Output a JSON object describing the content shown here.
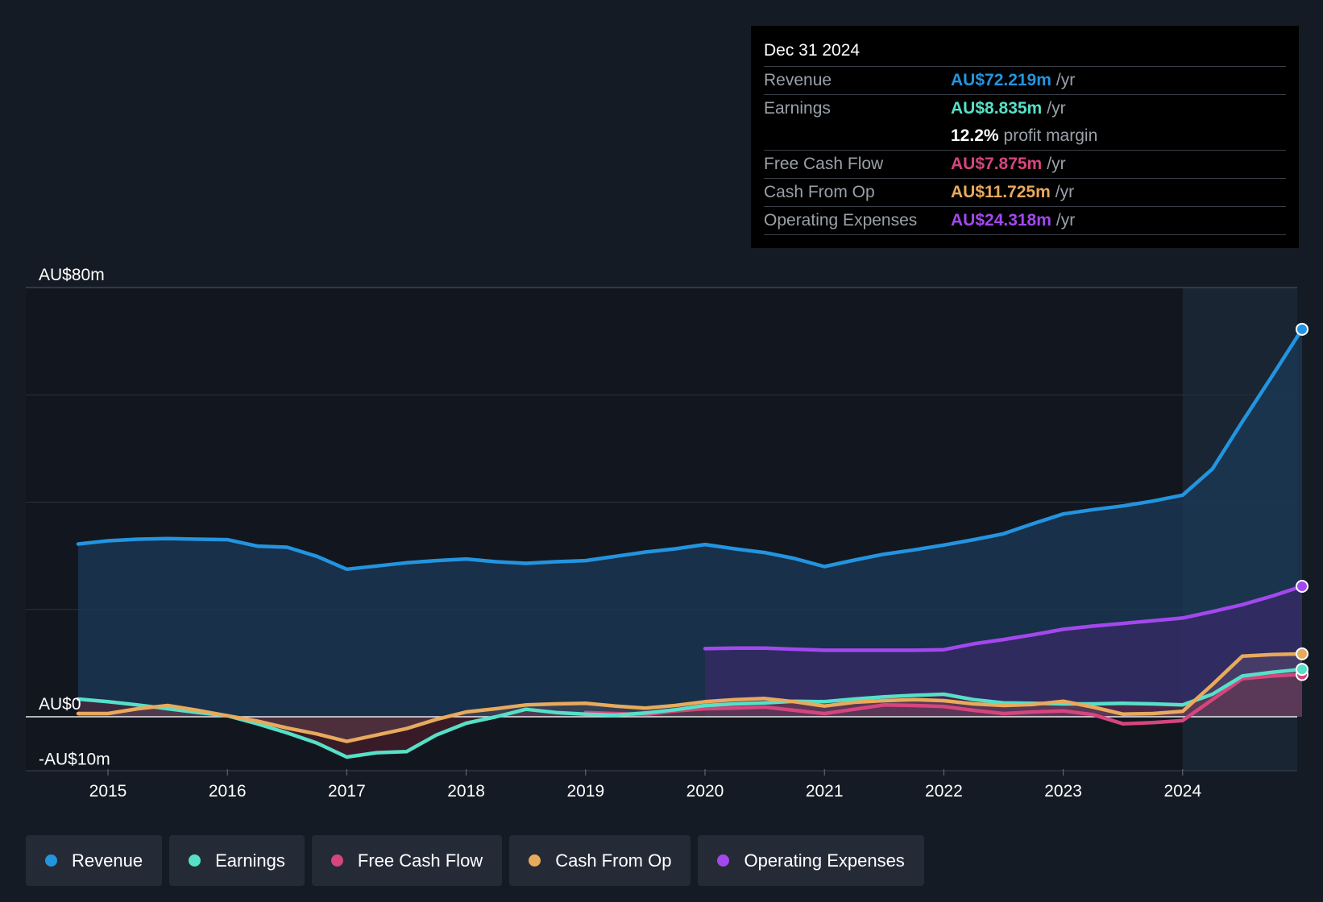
{
  "tooltip": {
    "date": "Dec 31 2024",
    "rows": [
      {
        "label": "Revenue",
        "value": "AU$72.219m",
        "unit": "/yr",
        "color": "#2394e0"
      },
      {
        "label": "Earnings",
        "value": "AU$8.835m",
        "unit": "/yr",
        "color": "#56e0c8"
      },
      {
        "label": "",
        "value": "12.2%",
        "unit": "profit margin",
        "color": "#ffffff"
      },
      {
        "label": "Free Cash Flow",
        "value": "AU$7.875m",
        "unit": "/yr",
        "color": "#d6457e"
      },
      {
        "label": "Cash From Op",
        "value": "AU$11.725m",
        "unit": "/yr",
        "color": "#e8aa5c"
      },
      {
        "label": "Operating Expenses",
        "value": "AU$24.318m",
        "unit": "/yr",
        "color": "#a348ee"
      }
    ]
  },
  "legend": [
    {
      "label": "Revenue",
      "color": "#2394e0"
    },
    {
      "label": "Earnings",
      "color": "#56e0c8"
    },
    {
      "label": "Free Cash Flow",
      "color": "#d6457e"
    },
    {
      "label": "Cash From Op",
      "color": "#e8aa5c"
    },
    {
      "label": "Operating Expenses",
      "color": "#a348ee"
    }
  ],
  "chart_data": {
    "type": "line",
    "title": "",
    "xlabel": "",
    "ylabel": "",
    "ylim": [
      -10,
      80
    ],
    "y_tick_labels": [
      "AU$80m",
      "AU$0",
      "-AU$10m"
    ],
    "x_ticks": [
      2015,
      2016,
      2017,
      2018,
      2019,
      2020,
      2021,
      2022,
      2023,
      2024
    ],
    "xlim": [
      2014.0,
      2025.0
    ],
    "forecast_shade_start": 2024.0,
    "series": [
      {
        "name": "Revenue",
        "color": "#2394e0",
        "x": [
          2014.75,
          2015.0,
          2015.25,
          2015.5,
          2015.75,
          2016.0,
          2016.25,
          2016.5,
          2016.75,
          2017.0,
          2017.25,
          2017.5,
          2017.75,
          2018.0,
          2018.25,
          2018.5,
          2018.75,
          2019.0,
          2019.25,
          2019.5,
          2019.75,
          2020.0,
          2020.25,
          2020.5,
          2020.75,
          2021.0,
          2021.25,
          2021.5,
          2021.75,
          2022.0,
          2022.25,
          2022.5,
          2022.75,
          2023.0,
          2023.25,
          2023.5,
          2023.75,
          2024.0,
          2024.25,
          2024.5,
          2024.75,
          2025.0
        ],
        "values": [
          32.2,
          32.8,
          33.1,
          33.2,
          33.1,
          33.0,
          31.8,
          31.6,
          29.9,
          27.5,
          28.1,
          28.7,
          29.1,
          29.4,
          28.9,
          28.6,
          28.9,
          29.1,
          29.9,
          30.7,
          31.3,
          32.1,
          31.3,
          30.6,
          29.5,
          28.0,
          29.2,
          30.3,
          31.1,
          32.0,
          33.0,
          34.1,
          36.0,
          37.8,
          38.6,
          39.3,
          40.2,
          41.3,
          46.2,
          55.0,
          63.5,
          72.219
        ]
      },
      {
        "name": "Earnings",
        "color": "#56e0c8",
        "x": [
          2014.75,
          2015.0,
          2015.25,
          2015.5,
          2015.75,
          2016.0,
          2016.25,
          2016.5,
          2016.75,
          2017.0,
          2017.25,
          2017.5,
          2017.75,
          2018.0,
          2018.25,
          2018.5,
          2018.75,
          2019.0,
          2019.25,
          2019.5,
          2019.75,
          2020.0,
          2020.25,
          2020.5,
          2020.75,
          2021.0,
          2021.25,
          2021.5,
          2021.75,
          2022.0,
          2022.25,
          2022.5,
          2022.75,
          2023.0,
          2023.25,
          2023.5,
          2023.75,
          2024.0,
          2024.25,
          2024.5,
          2024.75,
          2025.0
        ],
        "values": [
          3.3,
          2.8,
          2.2,
          1.5,
          0.8,
          0.2,
          -1.3,
          -3.0,
          -4.9,
          -7.5,
          -6.7,
          -6.5,
          -3.4,
          -1.2,
          0.0,
          1.4,
          0.8,
          0.5,
          0.3,
          0.7,
          1.3,
          2.1,
          2.4,
          2.6,
          2.9,
          2.8,
          3.3,
          3.7,
          4.0,
          4.2,
          3.2,
          2.6,
          2.5,
          2.4,
          2.4,
          2.5,
          2.4,
          2.2,
          4.2,
          7.6,
          8.3,
          8.835
        ]
      },
      {
        "name": "Free Cash Flow",
        "color": "#d6457e",
        "x": [
          2019.0,
          2019.25,
          2019.5,
          2019.75,
          2020.0,
          2020.25,
          2020.5,
          2020.75,
          2021.0,
          2021.25,
          2021.5,
          2021.75,
          2022.0,
          2022.25,
          2022.5,
          2022.75,
          2023.0,
          2023.25,
          2023.5,
          2023.75,
          2024.0,
          2024.25,
          2024.5,
          2024.75,
          2025.0
        ],
        "values": [
          0.8,
          0.6,
          0.4,
          1.1,
          1.5,
          1.6,
          1.8,
          1.2,
          0.6,
          1.4,
          2.2,
          2.1,
          1.9,
          1.2,
          0.6,
          0.9,
          1.1,
          0.4,
          -1.3,
          -1.1,
          -0.7,
          3.2,
          7.1,
          7.6,
          7.875
        ]
      },
      {
        "name": "Cash From Op",
        "color": "#e8aa5c",
        "x": [
          2014.75,
          2015.0,
          2015.25,
          2015.5,
          2015.75,
          2016.0,
          2016.25,
          2016.5,
          2016.75,
          2017.0,
          2017.25,
          2017.5,
          2017.75,
          2018.0,
          2018.25,
          2018.5,
          2018.75,
          2019.0,
          2019.25,
          2019.5,
          2019.75,
          2020.0,
          2020.25,
          2020.5,
          2020.75,
          2021.0,
          2021.25,
          2021.5,
          2021.75,
          2022.0,
          2022.25,
          2022.5,
          2022.75,
          2023.0,
          2023.25,
          2023.5,
          2023.75,
          2024.0,
          2024.25,
          2024.5,
          2024.75,
          2025.0
        ],
        "values": [
          0.6,
          0.6,
          1.5,
          2.1,
          1.2,
          0.2,
          -0.8,
          -2.1,
          -3.2,
          -4.6,
          -3.4,
          -2.2,
          -0.5,
          0.9,
          1.5,
          2.2,
          2.4,
          2.5,
          2.0,
          1.6,
          2.1,
          2.8,
          3.2,
          3.4,
          2.8,
          2.0,
          2.7,
          3.0,
          3.2,
          3.0,
          2.4,
          2.1,
          2.3,
          2.9,
          1.8,
          0.5,
          0.6,
          1.0,
          6.0,
          11.3,
          11.6,
          11.725
        ]
      },
      {
        "name": "Operating Expenses",
        "color": "#a348ee",
        "x": [
          2020.0,
          2020.25,
          2020.5,
          2020.75,
          2021.0,
          2021.25,
          2021.5,
          2021.75,
          2022.0,
          2022.25,
          2022.5,
          2022.75,
          2023.0,
          2023.25,
          2023.5,
          2023.75,
          2024.0,
          2024.25,
          2024.5,
          2024.75,
          2025.0
        ],
        "values": [
          12.7,
          12.8,
          12.8,
          12.6,
          12.4,
          12.4,
          12.4,
          12.4,
          12.5,
          13.6,
          14.4,
          15.3,
          16.3,
          16.9,
          17.4,
          17.9,
          18.4,
          19.6,
          20.9,
          22.5,
          24.318
        ]
      }
    ]
  }
}
